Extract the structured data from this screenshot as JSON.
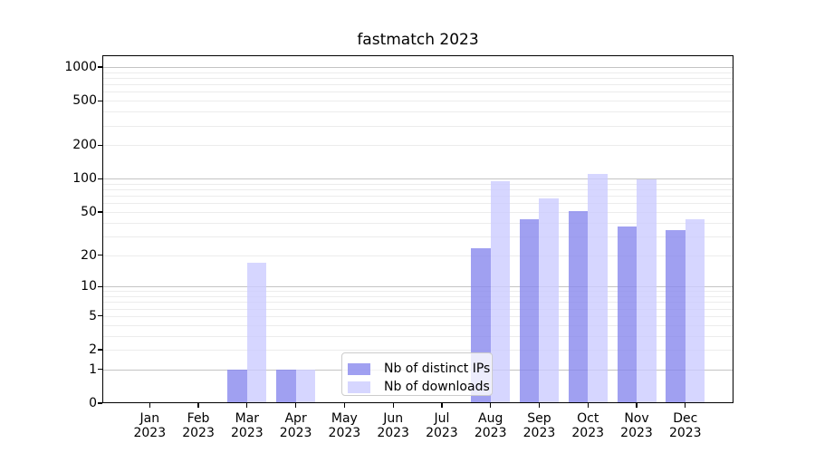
{
  "figure": {
    "title": "fastmatch 2023"
  },
  "chart_data": {
    "type": "bar",
    "title": "fastmatch 2023",
    "categories": [
      "Jan",
      "Feb",
      "Mar",
      "Apr",
      "May",
      "Jun",
      "Jul",
      "Aug",
      "Sep",
      "Oct",
      "Nov",
      "Dec"
    ],
    "year": "2023",
    "series": [
      {
        "name": "Nb of distinct IPs",
        "color": "#8888ee",
        "alpha": 0.8,
        "values": [
          0,
          0,
          1,
          1,
          0,
          0,
          0,
          23,
          43,
          51,
          37,
          34
        ]
      },
      {
        "name": "Nb of downloads",
        "color": "#ccccff",
        "alpha": 0.8,
        "values": [
          0,
          0,
          17,
          1,
          0,
          0,
          0,
          94,
          66,
          110,
          99,
          43
        ]
      }
    ],
    "xlabel": "",
    "ylabel": "",
    "y_axis": {
      "scale": "log1p",
      "tick_labels": [
        0,
        1,
        2,
        5,
        10,
        20,
        50,
        100,
        200,
        500,
        1000
      ],
      "major_gridlines": [
        1,
        10,
        100,
        1000
      ],
      "minor_gridlines": [
        2,
        3,
        4,
        5,
        6,
        7,
        8,
        9,
        20,
        30,
        40,
        50,
        60,
        70,
        80,
        90,
        200,
        300,
        400,
        500,
        600,
        700,
        800,
        900
      ],
      "ylim": [
        0,
        1274
      ]
    },
    "grid": true,
    "legend": {
      "position": "lower-center",
      "entries": [
        "Nb of distinct IPs",
        "Nb of downloads"
      ]
    }
  },
  "colors": {
    "major_grid": "#c4c4c4",
    "minor_grid": "#ececec",
    "spine": "#000000",
    "text": "#000000",
    "legend_border": "#cccccc",
    "background": "#ffffff"
  }
}
